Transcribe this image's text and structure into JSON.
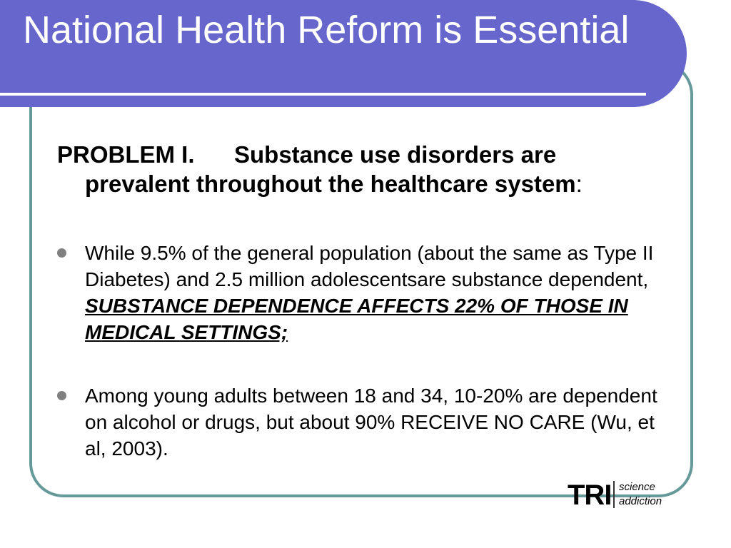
{
  "slide": {
    "title": "National Health Reform is Essential",
    "problem": {
      "label": "PROBLEM I.",
      "text_line1": "Substance use disorders are",
      "text_rest": "prevalent throughout the healthcare system",
      "colon": ":"
    },
    "bullets": [
      {
        "text": "While 9.5% of the general population (about the same as Type II Diabetes)  and 2.5 million adolescentsare substance dependent, ",
        "emphasis": "SUBSTANCE DEPENDENCE AFFECTS 22% OF THOSE IN MEDICAL SETTINGS;"
      },
      {
        "text": "Among young adults between 18 and 34, 10-20% are dependent on alcohol or drugs, but about 90% RECEIVE NO CARE (Wu, et al, 2003).",
        "emphasis": ""
      }
    ],
    "logo": {
      "main": "TRI",
      "line1": "science",
      "line2": "addiction"
    }
  },
  "colors": {
    "title_banner": "#6666cc",
    "frame_border": "#669999",
    "bullet_dot": "#808080"
  }
}
